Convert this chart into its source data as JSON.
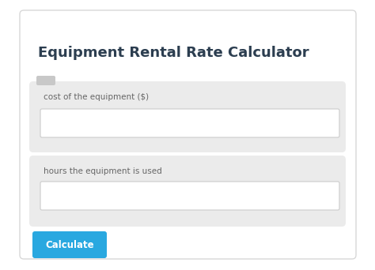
{
  "title": "Equipment Rental Rate Calculator",
  "title_fontsize": 13,
  "title_color": "#2c3e50",
  "label1": "cost of the equipment ($)",
  "label2": "hours the equipment is used",
  "button_text": "Calculate",
  "bg_color": "#ffffff",
  "outer_border_color": "#d8d8d8",
  "card_bg": "#ffffff",
  "field_bg": "#ebebeb",
  "input_bg": "#ffffff",
  "input_border": "#cccccc",
  "label_color": "#666666",
  "label_fontsize": 7.5,
  "button_bg": "#29a8e0",
  "button_text_color": "#ffffff",
  "button_fontsize": 8.5,
  "scroll_color": "#c8c8c8",
  "fig_width": 4.74,
  "fig_height": 3.42,
  "dpi": 100
}
